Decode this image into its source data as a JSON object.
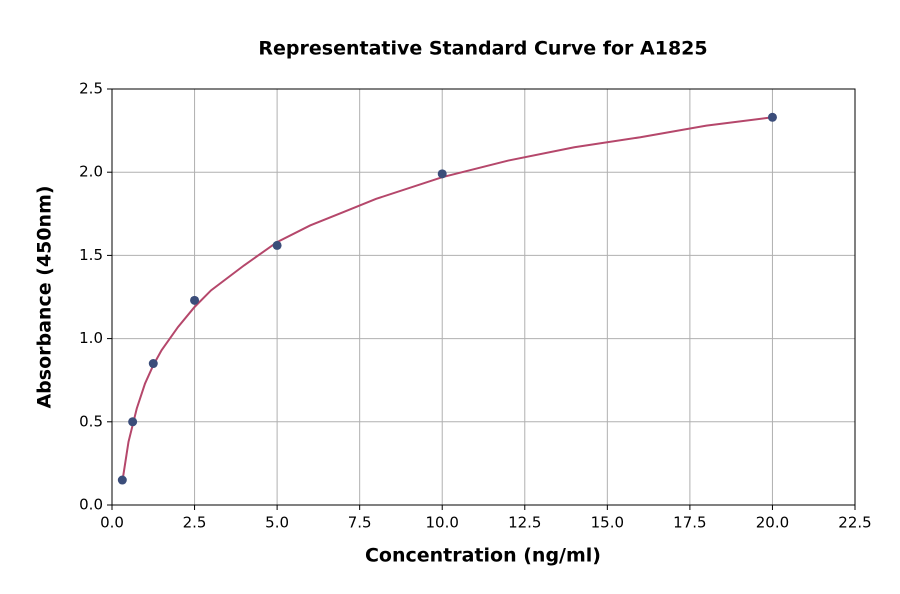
{
  "chart_data": {
    "type": "scatter",
    "title": "Representative Standard Curve for A1825",
    "x_label": "Concentration (ng/ml)",
    "y_label": "Absorbance (450nm)",
    "xlim": [
      0,
      22.5
    ],
    "ylim": [
      0,
      2.5
    ],
    "xticks": [
      {
        "value": 0,
        "label": "0.0"
      },
      2.5,
      {
        "value": 5,
        "label": "5.0"
      },
      7.5,
      {
        "value": 10,
        "label": "10.0"
      },
      12.5,
      {
        "value": 15,
        "label": "15.0"
      },
      17.5,
      {
        "value": 20,
        "label": "20.0"
      },
      22.5
    ],
    "yticks": [
      {
        "value": 0,
        "label": "0.0"
      },
      0.5,
      {
        "value": 1,
        "label": "1.0"
      },
      1.5,
      {
        "value": 2,
        "label": "2.0"
      },
      2.5
    ],
    "grid": true,
    "series": [
      {
        "style": "line",
        "color": "#b5476b",
        "x": [
          0.3125,
          0.5,
          0.75,
          1,
          1.25,
          1.5,
          2,
          2.5,
          3,
          4,
          5,
          6,
          7,
          8,
          10,
          12,
          14,
          16,
          18,
          20
        ],
        "values": [
          0.14,
          0.38,
          0.58,
          0.73,
          0.84,
          0.93,
          1.07,
          1.19,
          1.29,
          1.44,
          1.58,
          1.68,
          1.76,
          1.84,
          1.97,
          2.07,
          2.15,
          2.21,
          2.28,
          2.33
        ]
      },
      {
        "style": "markers",
        "color": "#3b4d7a",
        "x": [
          0.3125,
          0.625,
          1.25,
          2.5,
          5,
          10,
          20
        ],
        "values": [
          0.15,
          0.5,
          0.85,
          1.23,
          1.56,
          1.99,
          2.33
        ]
      }
    ]
  }
}
